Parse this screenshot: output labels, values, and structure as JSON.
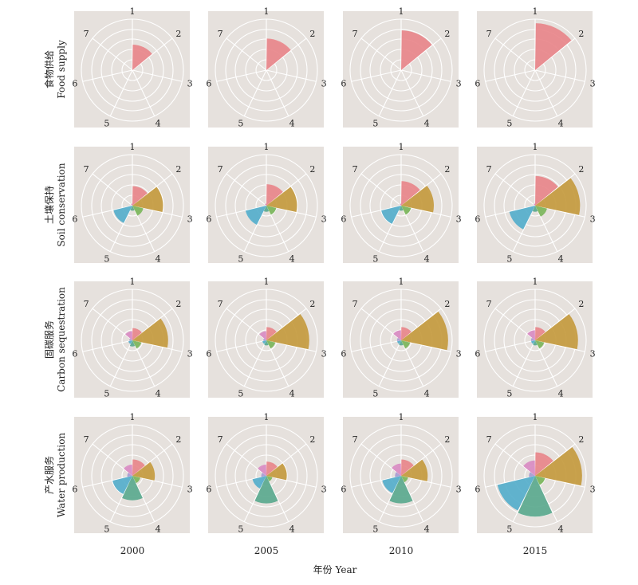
{
  "chart_data": {
    "type": "polar-bar",
    "xlabel": "年份 Year",
    "years": [
      "2000",
      "2005",
      "2010",
      "2015"
    ],
    "sector_labels": [
      "1",
      "2",
      "3",
      "4",
      "5",
      "6",
      "7"
    ],
    "colors": [
      "#E8868A",
      "#C49A3E",
      "#7BB55A",
      "#5BA98E",
      "#55AECB",
      "#A89BD1",
      "#D98BC2"
    ],
    "rmax": 5,
    "rows": [
      {
        "label_cn": "食物供给",
        "label_en": "Food supply",
        "values": [
          [
            2.5,
            0,
            0,
            0,
            0,
            0,
            0
          ],
          [
            3.1,
            0,
            0,
            0,
            0,
            0,
            0
          ],
          [
            3.9,
            0,
            0,
            0,
            0,
            0,
            0
          ],
          [
            4.6,
            0,
            0,
            0,
            0,
            0,
            0
          ]
        ]
      },
      {
        "label_cn": "土壤保持",
        "label_en": "Soil conservation",
        "values": [
          [
            1.9,
            3.0,
            1.1,
            0.5,
            1.9,
            0,
            0.2
          ],
          [
            2.1,
            3.0,
            1.0,
            0.6,
            2.1,
            0,
            0.2
          ],
          [
            2.4,
            3.2,
            1.0,
            0.5,
            2.0,
            0,
            0.2
          ],
          [
            2.9,
            4.4,
            1.2,
            0.6,
            2.6,
            0,
            0.2
          ]
        ]
      },
      {
        "label_cn": "固碳服务",
        "label_en": "Carbon sequestration",
        "values": [
          [
            1.2,
            3.5,
            0.9,
            0.6,
            0.4,
            0.3,
            0.9
          ],
          [
            1.3,
            4.2,
            0.9,
            0.5,
            0.4,
            0.3,
            0.9
          ],
          [
            1.3,
            4.6,
            0.9,
            0.5,
            0.4,
            0.4,
            1.0
          ],
          [
            1.3,
            4.2,
            0.9,
            0.5,
            0.4,
            0.4,
            1.0
          ]
        ]
      },
      {
        "label_cn": "产水服务",
        "label_en": "Water production",
        "values": [
          [
            1.6,
            2.2,
            0.8,
            2.4,
            2.0,
            0.5,
            1.1
          ],
          [
            1.4,
            2.0,
            0.6,
            2.7,
            1.4,
            0.5,
            1.1
          ],
          [
            1.6,
            2.6,
            0.7,
            2.7,
            1.9,
            0.6,
            1.2
          ],
          [
            2.3,
            4.6,
            1.0,
            4.0,
            3.8,
            0.6,
            1.5
          ]
        ]
      }
    ]
  }
}
